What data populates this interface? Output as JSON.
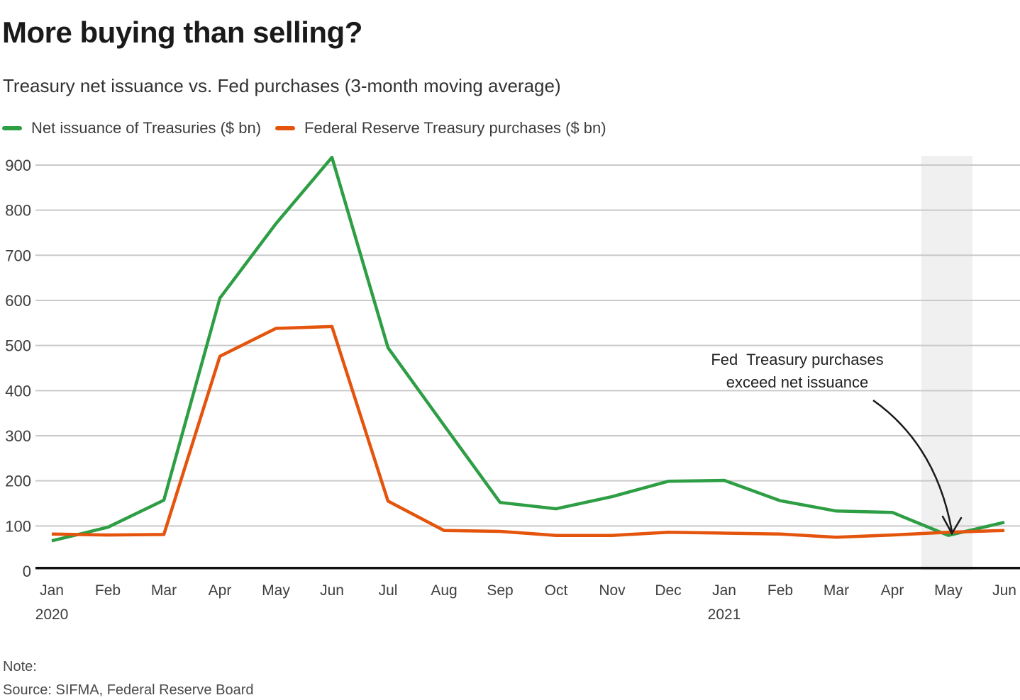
{
  "header": {
    "title": "More buying than selling?",
    "subtitle": "Treasury net issuance vs. Fed purchases (3-month moving average)"
  },
  "legend": {
    "items": [
      {
        "label": "Net issuance of Treasuries ($ bn)",
        "color": "#2E9E44"
      },
      {
        "label": "Federal Reserve Treasury purchases ($ bn)",
        "color": "#E4540C"
      }
    ]
  },
  "annotation": {
    "line1": "Fed  Treasury purchases",
    "line2": "exceed net issuance"
  },
  "footer": {
    "note": "Note:",
    "source": "Source: SIFMA, Federal Reserve Board"
  },
  "chart_data": {
    "type": "line",
    "title": "More buying than selling?",
    "subtitle": "Treasury net issuance vs. Fed purchases (3-month moving average)",
    "categories": [
      "Jan 2020",
      "Feb 2020",
      "Mar 2020",
      "Apr 2020",
      "May 2020",
      "Jun 2020",
      "Jul 2020",
      "Aug 2020",
      "Sep 2020",
      "Oct 2020",
      "Nov 2020",
      "Dec 2020",
      "Jan 2021",
      "Feb 2021",
      "Mar 2021",
      "Apr 2021",
      "May 2021",
      "Jun 2021"
    ],
    "x_tick_labels": [
      "Jan",
      "Feb",
      "Mar",
      "Apr",
      "May",
      "Jun",
      "Jul",
      "Aug",
      "Sep",
      "Oct",
      "Nov",
      "Dec",
      "Jan",
      "Feb",
      "Mar",
      "Apr",
      "May",
      "Jun"
    ],
    "year_labels": [
      {
        "text": "2020",
        "month_index": 0
      },
      {
        "text": "2021",
        "month_index": 12
      }
    ],
    "y_ticks": [
      0,
      100,
      200,
      300,
      400,
      500,
      600,
      700,
      800,
      900
    ],
    "ylim": [
      0,
      940
    ],
    "grid": true,
    "legend_position": "top-left",
    "series": [
      {
        "name": "Net issuance of Treasuries ($ bn)",
        "color": "#2E9E44",
        "values": [
          67,
          97,
          157,
          605,
          770,
          917,
          495,
          323,
          152,
          138,
          165,
          199,
          201,
          156,
          133,
          130,
          79,
          108
        ]
      },
      {
        "name": "Federal Reserve Treasury purchases ($ bn)",
        "color": "#E4540C",
        "values": [
          82,
          80,
          81,
          476,
          538,
          542,
          155,
          90,
          88,
          79,
          79,
          86,
          84,
          82,
          75,
          80,
          86,
          90
        ]
      }
    ],
    "highlight_band": {
      "month_index": 16
    },
    "annotation": {
      "text": "Fed Treasury purchases exceed net issuance",
      "target_month_index": 16
    }
  },
  "colors": {
    "green": "#2E9E44",
    "orange": "#E4540C",
    "gridline": "#c9c9c9",
    "axis_baseline": "#111111",
    "band": "#f0f0f0",
    "title": "#1a1a1a",
    "text": "#333333",
    "muted": "#4a4a4a",
    "annotation_arrow": "#1a1a1a"
  }
}
